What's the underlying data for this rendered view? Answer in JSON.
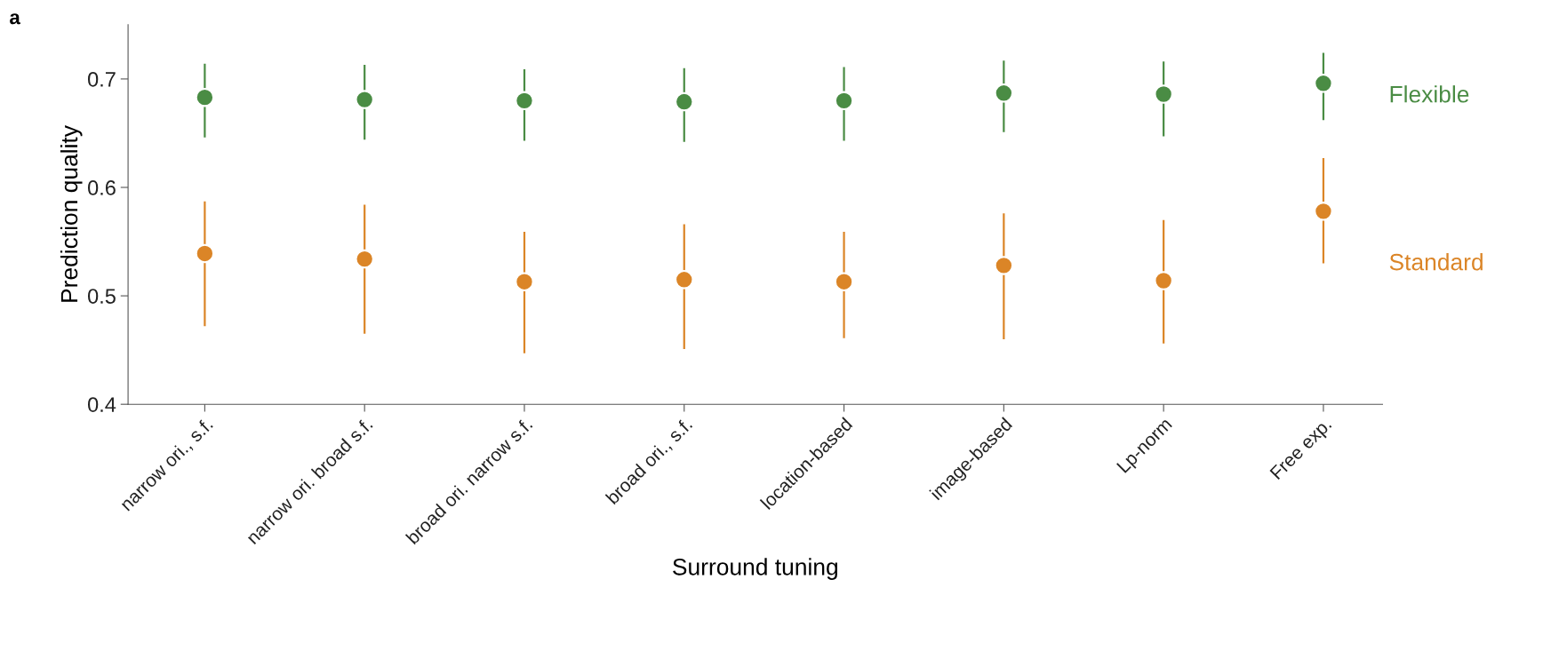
{
  "chart_data": {
    "type": "scatter",
    "title": "a",
    "xlabel": "Surround tuning",
    "ylabel": "Prediction quality",
    "categories": [
      "narrow ori., s.f.",
      "narrow ori. broad s.f.",
      "broad ori. narrow s.f.",
      "broad ori., s.f.",
      "location-based",
      "image-based",
      "Lp-norm",
      "Free exp."
    ],
    "series": [
      {
        "name": "Flexible",
        "color": "#4a8c44",
        "values": [
          0.683,
          0.681,
          0.68,
          0.679,
          0.68,
          0.687,
          0.686,
          0.696
        ],
        "errors": [
          [
            0.646,
            0.714
          ],
          [
            0.644,
            0.713
          ],
          [
            0.643,
            0.709
          ],
          [
            0.642,
            0.71
          ],
          [
            0.643,
            0.711
          ],
          [
            0.651,
            0.717
          ],
          [
            0.647,
            0.716
          ],
          [
            0.662,
            0.724
          ]
        ]
      },
      {
        "name": "Standard",
        "color": "#db8527",
        "values": [
          0.539,
          0.534,
          0.513,
          0.515,
          0.513,
          0.528,
          0.514,
          0.578
        ],
        "errors": [
          [
            0.472,
            0.587
          ],
          [
            0.465,
            0.584
          ],
          [
            0.447,
            0.559
          ],
          [
            0.451,
            0.566
          ],
          [
            0.461,
            0.559
          ],
          [
            0.46,
            0.576
          ],
          [
            0.456,
            0.57
          ],
          [
            0.53,
            0.627
          ]
        ]
      }
    ],
    "ylim": [
      0.4,
      0.75
    ],
    "yticks": [
      0.4,
      0.5,
      0.6,
      0.7
    ],
    "grid": false,
    "legend": false,
    "marker": "circle"
  }
}
